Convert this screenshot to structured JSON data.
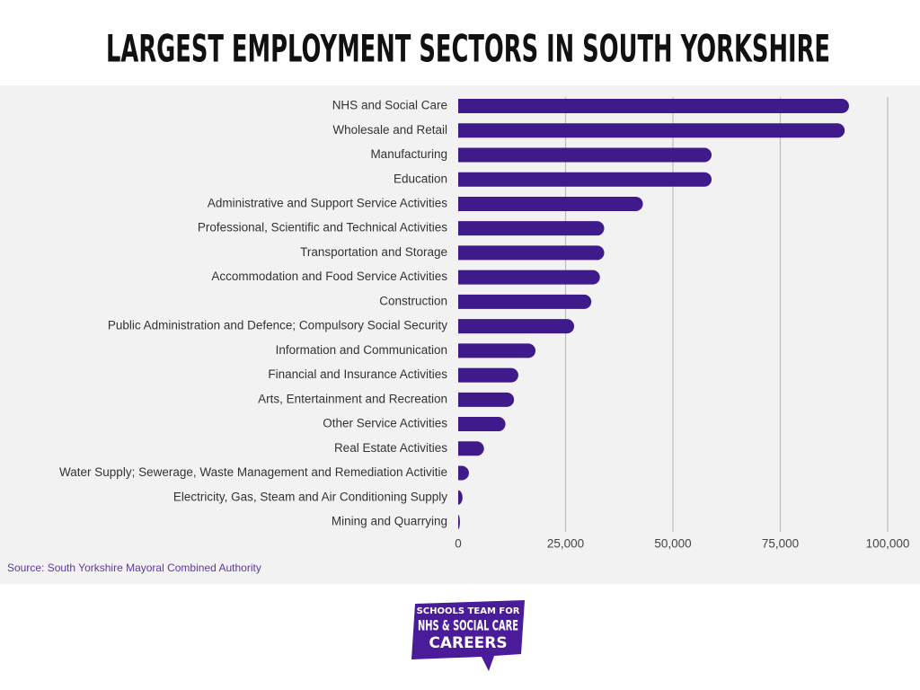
{
  "chart_data": {
    "type": "bar",
    "orientation": "horizontal",
    "title": "LARGEST EMPLOYMENT SECTORS IN SOUTH YORKSHIRE",
    "categories": [
      "NHS and Social Care",
      "Wholesale and Retail",
      "Manufacturing",
      "Education",
      "Administrative and Support Service Activities",
      "Professional, Scientific and Technical Activities",
      "Transportation and Storage",
      "Accommodation and Food Service Activities",
      "Construction",
      "Public Administration and Defence; Compulsory Social Security",
      "Information and Communication",
      "Financial and Insurance Activities",
      "Arts, Entertainment and Recreation",
      "Other Service Activities",
      "Real Estate Activities",
      "Water Supply; Sewerage, Waste Management and Remediation Activitie",
      "Electricity, Gas, Steam and Air Conditioning Supply",
      "Mining and Quarrying"
    ],
    "values": [
      91000,
      90000,
      59000,
      59000,
      43000,
      34000,
      34000,
      33000,
      31000,
      27000,
      18000,
      14000,
      13000,
      11000,
      6000,
      2500,
      1000,
      400
    ],
    "color": "#3f1a8a",
    "xlim": [
      0,
      100000
    ],
    "xticks": [
      0,
      {
        "value": 25000,
        "label": "25,000"
      },
      {
        "value": 50000,
        "label": "50,000"
      },
      {
        "value": 75000,
        "label": "75,000"
      },
      {
        "value": 100000,
        "label": "100,000"
      }
    ],
    "grid": true,
    "source": "Source: South Yorkshire Mayoral Combined Authority"
  },
  "logo": {
    "lines": [
      "SCHOOLS TEAM FOR",
      "NHS & SOCIAL CARE",
      "CAREERS"
    ]
  }
}
